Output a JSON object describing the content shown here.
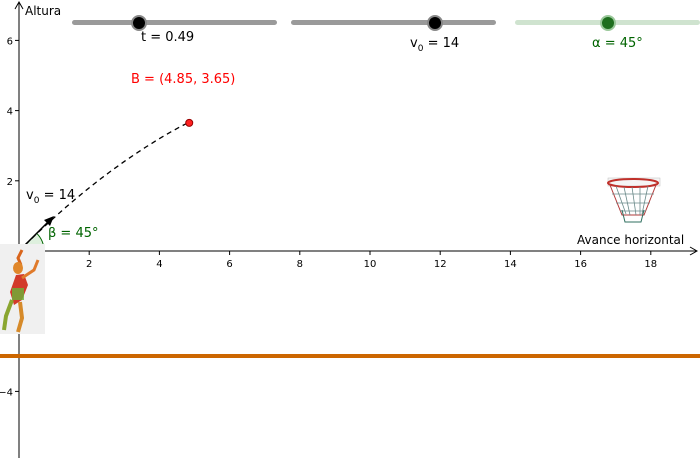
{
  "axes": {
    "x_label": "Avance horizontal",
    "y_label": "Altura",
    "x_ticks": [
      "2",
      "4",
      "6",
      "8",
      "10",
      "12",
      "14",
      "16",
      "18"
    ],
    "y_ticks": [
      "6",
      "4",
      "2",
      "−4"
    ]
  },
  "sliders": {
    "t": {
      "label": "t = 0.49",
      "value": 0.49,
      "min": 0,
      "max": 1.5,
      "color": "#888888"
    },
    "v0": {
      "label_main": "v",
      "label_sub": "0",
      "label_rest": " = 14",
      "value": 14,
      "min": 0,
      "max": 20,
      "color": "#888888"
    },
    "alpha": {
      "label": "α = 45°",
      "value": 45,
      "min": 0,
      "max": 90,
      "color": "#006400"
    }
  },
  "point_B": {
    "label": "B = (4.85, 3.65)",
    "x": 4.85,
    "y": 3.65,
    "color": "#ff0000"
  },
  "vector": {
    "label_main": "v",
    "label_sub": "0",
    "label_rest": " = 14"
  },
  "angle": {
    "label": "β = 45°",
    "color": "#006400"
  },
  "ground_line": {
    "y": -3,
    "color": "#cc6600"
  },
  "hoop": {
    "x": 17.4
  }
}
